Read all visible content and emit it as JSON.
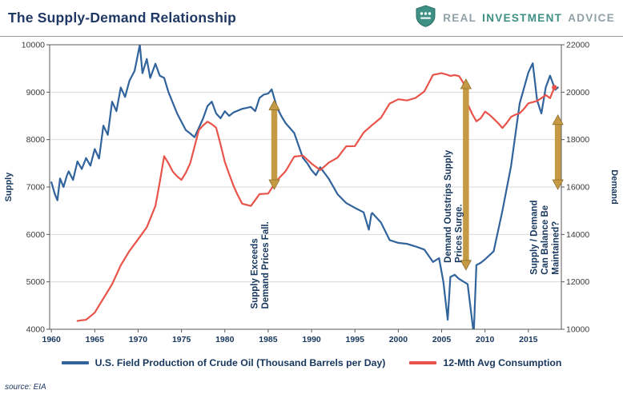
{
  "header": {
    "title": "The Supply-Demand Relationship",
    "logo": {
      "word1": "REAL",
      "word2": "INVESTMENT",
      "word3": "ADVICE"
    }
  },
  "source": "source: EIA",
  "colors": {
    "supply_line": "#31639C",
    "demand_line": "#E8534A",
    "annotation_arrow": "#C59A45",
    "annotation_arrow_edge": "#8F6E2A",
    "navy_text": "#17375E",
    "logo_teal": "#3E9084",
    "logo_gray": "#90A0A7",
    "gridline": "#D9D9D9"
  },
  "chart_data": {
    "type": "line",
    "title": "The Supply-Demand Relationship",
    "grid": true,
    "legend_position": "bottom",
    "x_axis": {
      "min": 1959.8,
      "max": 2018.8,
      "ticks": [
        1960,
        1965,
        1970,
        1975,
        1980,
        1985,
        1990,
        1995,
        2000,
        2005,
        2010,
        2015
      ]
    },
    "left_axis": {
      "title": "Supply",
      "min": 4000,
      "max": 10000,
      "ticks": [
        4000,
        5000,
        6000,
        7000,
        8000,
        9000,
        10000
      ]
    },
    "right_axis": {
      "title": "Demand",
      "min": 10000,
      "max": 22000,
      "ticks": [
        10000,
        12000,
        14000,
        16000,
        18000,
        20000,
        22000
      ]
    },
    "series": [
      {
        "name": "U.S. Field Production of Crude Oil (Thousand Barrels per Day)",
        "axis": "left",
        "color": "#31639C",
        "end_marker": false,
        "points": [
          [
            1960,
            7100
          ],
          [
            1960.4,
            6850
          ],
          [
            1960.7,
            6720
          ],
          [
            1961,
            7180
          ],
          [
            1961.4,
            7000
          ],
          [
            1961.8,
            7250
          ],
          [
            1962,
            7330
          ],
          [
            1962.5,
            7150
          ],
          [
            1963,
            7540
          ],
          [
            1963.5,
            7380
          ],
          [
            1964,
            7610
          ],
          [
            1964.5,
            7450
          ],
          [
            1965,
            7800
          ],
          [
            1965.5,
            7600
          ],
          [
            1966,
            8295
          ],
          [
            1966.5,
            8100
          ],
          [
            1967,
            8800
          ],
          [
            1967.5,
            8600
          ],
          [
            1968,
            9100
          ],
          [
            1968.5,
            8900
          ],
          [
            1969,
            9240
          ],
          [
            1969.6,
            9450
          ],
          [
            1970.2,
            10000
          ],
          [
            1970.5,
            9400
          ],
          [
            1971,
            9700
          ],
          [
            1971.4,
            9300
          ],
          [
            1972,
            9600
          ],
          [
            1972.5,
            9350
          ],
          [
            1973,
            9300
          ],
          [
            1973.5,
            9000
          ],
          [
            1974,
            8775
          ],
          [
            1974.5,
            8550
          ],
          [
            1975,
            8375
          ],
          [
            1975.5,
            8200
          ],
          [
            1976,
            8130
          ],
          [
            1976.5,
            8050
          ],
          [
            1977,
            8245
          ],
          [
            1977.5,
            8450
          ],
          [
            1978,
            8707
          ],
          [
            1978.5,
            8800
          ],
          [
            1979,
            8552
          ],
          [
            1979.5,
            8450
          ],
          [
            1980,
            8597
          ],
          [
            1980.5,
            8500
          ],
          [
            1981,
            8572
          ],
          [
            1982,
            8649
          ],
          [
            1983,
            8688
          ],
          [
            1983.5,
            8600
          ],
          [
            1984,
            8879
          ],
          [
            1984.5,
            8950
          ],
          [
            1985,
            8971
          ],
          [
            1985.4,
            9060
          ],
          [
            1986,
            8680
          ],
          [
            1986.5,
            8500
          ],
          [
            1987,
            8349
          ],
          [
            1988,
            8140
          ],
          [
            1989,
            7613
          ],
          [
            1989.5,
            7500
          ],
          [
            1990,
            7355
          ],
          [
            1990.5,
            7250
          ],
          [
            1991,
            7417
          ],
          [
            1992,
            7171
          ],
          [
            1993,
            6847
          ],
          [
            1994,
            6662
          ],
          [
            1995,
            6560
          ],
          [
            1996,
            6465
          ],
          [
            1996.6,
            6100
          ],
          [
            1996.9,
            6430
          ],
          [
            1997,
            6452
          ],
          [
            1998,
            6252
          ],
          [
            1999,
            5881
          ],
          [
            2000,
            5822
          ],
          [
            2001,
            5801
          ],
          [
            2002,
            5746
          ],
          [
            2003,
            5681
          ],
          [
            2004,
            5419
          ],
          [
            2004.7,
            5500
          ],
          [
            2005.2,
            5000
          ],
          [
            2005.7,
            4200
          ],
          [
            2006,
            5102
          ],
          [
            2006.5,
            5150
          ],
          [
            2007,
            5064
          ],
          [
            2008,
            4950
          ],
          [
            2008.7,
            3900
          ],
          [
            2009,
            5353
          ],
          [
            2009.5,
            5400
          ],
          [
            2010,
            5475
          ],
          [
            2011,
            5645
          ],
          [
            2012,
            6497
          ],
          [
            2013,
            7441
          ],
          [
            2014,
            8764
          ],
          [
            2015,
            9415
          ],
          [
            2015.5,
            9610
          ],
          [
            2016,
            8831
          ],
          [
            2016.5,
            8550
          ],
          [
            2017,
            9100
          ],
          [
            2017.5,
            9350
          ],
          [
            2017.8,
            9200
          ],
          [
            2018.1,
            9050
          ],
          [
            2018.4,
            9100
          ]
        ]
      },
      {
        "name": "12-Mth Avg Consumption",
        "axis": "right",
        "color": "#E8534A",
        "end_marker": true,
        "points": [
          [
            1963,
            10350
          ],
          [
            1963.5,
            10380
          ],
          [
            1964,
            10400
          ],
          [
            1964.5,
            10550
          ],
          [
            1965,
            10700
          ],
          [
            1965.5,
            11000
          ],
          [
            1966,
            11300
          ],
          [
            1966.5,
            11600
          ],
          [
            1967,
            11900
          ],
          [
            1967.5,
            12300
          ],
          [
            1968,
            12700
          ],
          [
            1968.5,
            13000
          ],
          [
            1969,
            13300
          ],
          [
            1969.5,
            13550
          ],
          [
            1970,
            13800
          ],
          [
            1970.5,
            14050
          ],
          [
            1971,
            14300
          ],
          [
            1971.5,
            14750
          ],
          [
            1972,
            15200
          ],
          [
            1972.5,
            16200
          ],
          [
            1973,
            17300
          ],
          [
            1973.5,
            17000
          ],
          [
            1974,
            16650
          ],
          [
            1974.5,
            16450
          ],
          [
            1975,
            16300
          ],
          [
            1975.5,
            16600
          ],
          [
            1976,
            17000
          ],
          [
            1976.5,
            17700
          ],
          [
            1977,
            18400
          ],
          [
            1977.5,
            18600
          ],
          [
            1978,
            18756
          ],
          [
            1978.5,
            18650
          ],
          [
            1979,
            18500
          ],
          [
            1979.5,
            17800
          ],
          [
            1980,
            17050
          ],
          [
            1980.5,
            16550
          ],
          [
            1981,
            16050
          ],
          [
            1981.5,
            15650
          ],
          [
            1982,
            15300
          ],
          [
            1982.5,
            15250
          ],
          [
            1983,
            15200
          ],
          [
            1983.5,
            15450
          ],
          [
            1984,
            15700
          ],
          [
            1985,
            15725
          ],
          [
            1986,
            16280
          ],
          [
            1987,
            16665
          ],
          [
            1988,
            17280
          ],
          [
            1989,
            17325
          ],
          [
            1990,
            16988
          ],
          [
            1991,
            16713
          ],
          [
            1992,
            17030
          ],
          [
            1993,
            17240
          ],
          [
            1994,
            17720
          ],
          [
            1995,
            17725
          ],
          [
            1996,
            18300
          ],
          [
            1997,
            18620
          ],
          [
            1998,
            18920
          ],
          [
            1999,
            19520
          ],
          [
            2000,
            19700
          ],
          [
            2001,
            19650
          ],
          [
            2002,
            19760
          ],
          [
            2003,
            20030
          ],
          [
            2004,
            20730
          ],
          [
            2005,
            20800
          ],
          [
            2005.5,
            20750
          ],
          [
            2006,
            20690
          ],
          [
            2006.5,
            20720
          ],
          [
            2007,
            20680
          ],
          [
            2007.5,
            20400
          ],
          [
            2008,
            19500
          ],
          [
            2008.5,
            19100
          ],
          [
            2009,
            18770
          ],
          [
            2009.5,
            18900
          ],
          [
            2010,
            19180
          ],
          [
            2010.5,
            19050
          ],
          [
            2011,
            18880
          ],
          [
            2011.5,
            18700
          ],
          [
            2012,
            18490
          ],
          [
            2012.5,
            18700
          ],
          [
            2013,
            18960
          ],
          [
            2013.5,
            19050
          ],
          [
            2014,
            19110
          ],
          [
            2014.5,
            19300
          ],
          [
            2015,
            19530
          ],
          [
            2015.5,
            19580
          ],
          [
            2016,
            19630
          ],
          [
            2016.5,
            19750
          ],
          [
            2017,
            19880
          ],
          [
            2017.5,
            19750
          ],
          [
            2018,
            20200
          ]
        ]
      }
    ],
    "annotations": [
      {
        "x": 1985.7,
        "axis": "left",
        "from": 8830,
        "to": 6950,
        "text_x": 1983.4,
        "text_bottom": 4430,
        "lines": [
          "Supply Exceeds",
          "Demand Prices Fall."
        ]
      },
      {
        "x": 2007.8,
        "axis": "right",
        "from": 20550,
        "to": 12500,
        "text_x": 2005.7,
        "text_bottom": 5400,
        "lines": [
          "Demand Outstrips Supply",
          "Prices Surge."
        ]
      },
      {
        "x": 2018.4,
        "axis": "left",
        "from": 8520,
        "to": 6950,
        "text_x": 2015.6,
        "text_bottom": 5150,
        "lines": [
          "Supply / Demand",
          "Can Balance Be",
          "Maintained?"
        ]
      }
    ]
  }
}
